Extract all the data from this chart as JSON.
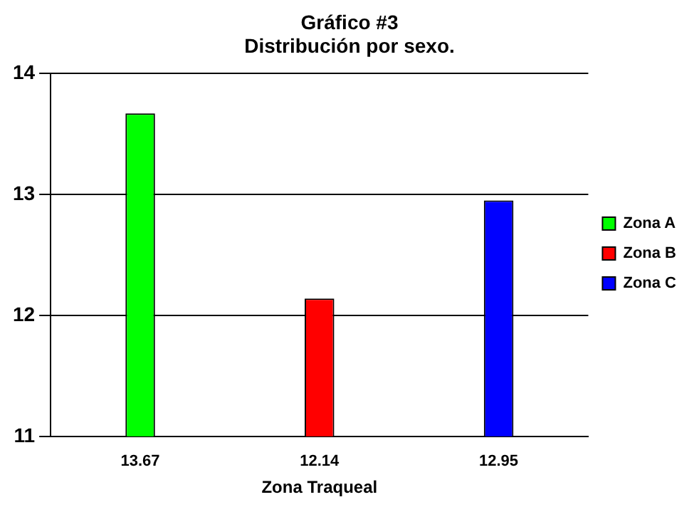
{
  "chart_data": {
    "type": "bar",
    "title": "Gráfico #3",
    "subtitle": "Distribución por sexo.",
    "xlabel": "Zona Traqueal",
    "categories": [
      "13.67",
      "12.14",
      "12.95"
    ],
    "series": [
      {
        "name": "Zona A",
        "color": "#00ff00",
        "values": [
          13.67,
          null,
          null
        ]
      },
      {
        "name": "Zona B",
        "color": "#ff0000",
        "values": [
          null,
          12.14,
          null
        ]
      },
      {
        "name": "Zona C",
        "color": "#0000ff",
        "values": [
          null,
          null,
          12.95
        ]
      }
    ],
    "ylim": [
      11,
      14
    ],
    "yticks": [
      11,
      12,
      13,
      14
    ],
    "grid": "y",
    "legend": "right"
  }
}
